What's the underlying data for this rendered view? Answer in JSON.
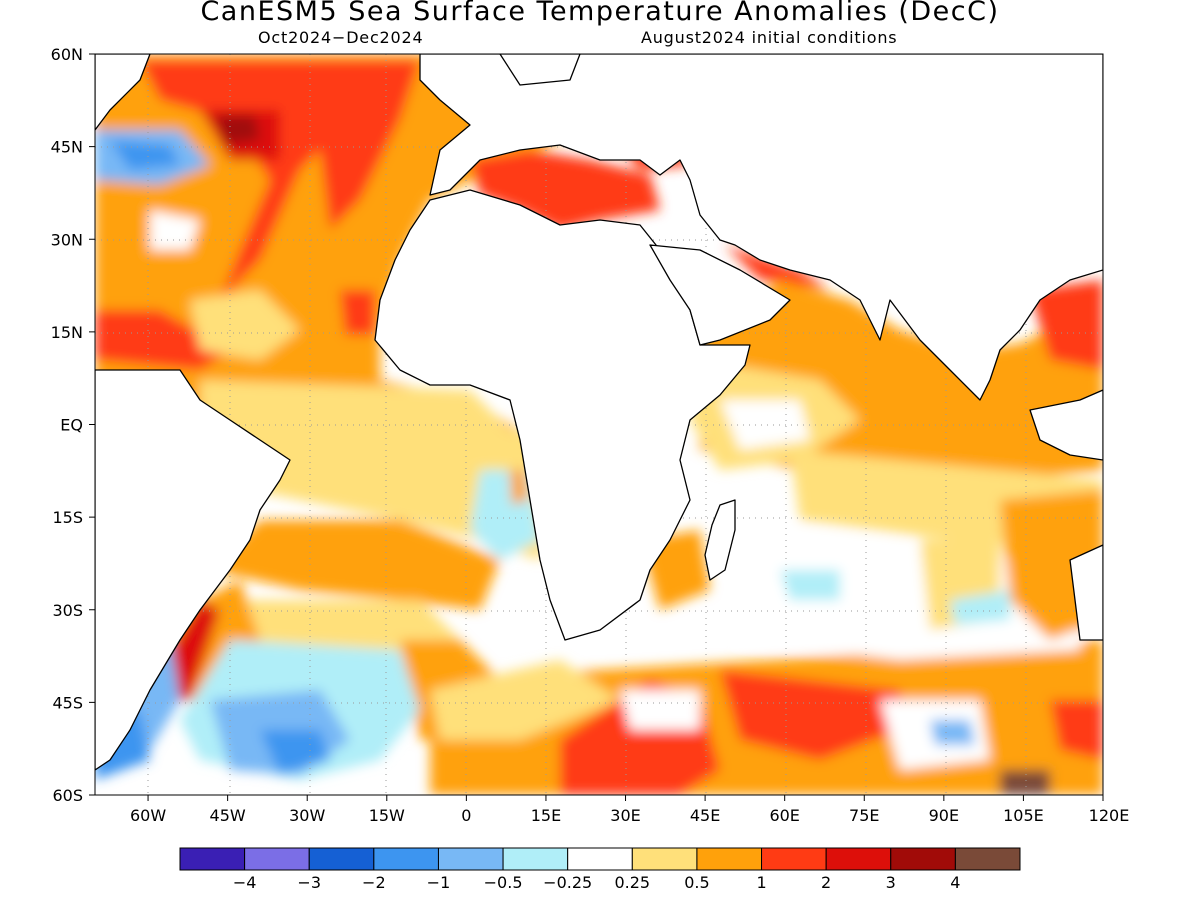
{
  "title": "CanESM5 Sea Surface Temperature Anomalies (DecC)",
  "subtitle_left": "Oct2024−Dec2024",
  "subtitle_right": "August2024 initial conditions",
  "map": {
    "lon_range": [
      -70,
      120
    ],
    "lat_range": [
      -60,
      60
    ],
    "lon_ticks": [
      {
        "value": -60,
        "label": "60W"
      },
      {
        "value": -45,
        "label": "45W"
      },
      {
        "value": -30,
        "label": "30W"
      },
      {
        "value": -15,
        "label": "15W"
      },
      {
        "value": 0,
        "label": "0"
      },
      {
        "value": 15,
        "label": "15E"
      },
      {
        "value": 30,
        "label": "30E"
      },
      {
        "value": 45,
        "label": "45E"
      },
      {
        "value": 60,
        "label": "60E"
      },
      {
        "value": 75,
        "label": "75E"
      },
      {
        "value": 90,
        "label": "90E"
      },
      {
        "value": 105,
        "label": "105E"
      },
      {
        "value": 120,
        "label": "120E"
      }
    ],
    "lat_ticks": [
      {
        "value": 60,
        "label": "60N"
      },
      {
        "value": 45,
        "label": "45N"
      },
      {
        "value": 30,
        "label": "30N"
      },
      {
        "value": 15,
        "label": "15N"
      },
      {
        "value": 0,
        "label": "EQ"
      },
      {
        "value": -15,
        "label": "15S"
      },
      {
        "value": -30,
        "label": "30S"
      },
      {
        "value": -45,
        "label": "45S"
      },
      {
        "value": -60,
        "label": "60S"
      }
    ],
    "grid": "dotted"
  },
  "colorbar": {
    "colors": [
      "#3a1fb4",
      "#7b6ee6",
      "#1560d4",
      "#3d95f0",
      "#78b8f5",
      "#b0eef8",
      "#ffffff",
      "#ffe07a",
      "#ffa10b",
      "#ff3b14",
      "#dd0f0a",
      "#a10b08",
      "#7a4a38"
    ],
    "labels": [
      "−4",
      "−3",
      "−2",
      "−1",
      "−0.5",
      "−0.25",
      "0.25",
      "0.5",
      "1",
      "2",
      "3",
      "4"
    ]
  }
}
